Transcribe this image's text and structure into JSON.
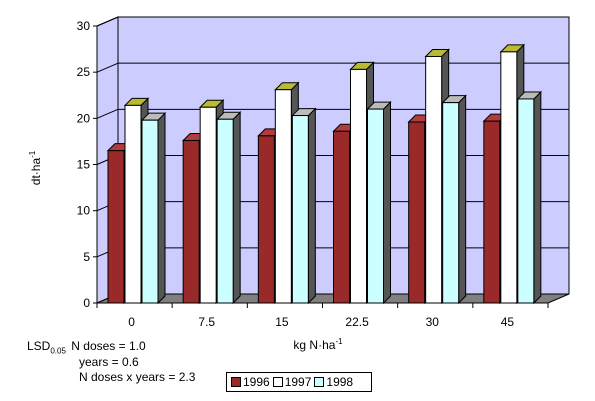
{
  "chart_data": {
    "type": "bar",
    "view": "3d-clustered-column",
    "categories": [
      "0",
      "7.5",
      "15",
      "22.5",
      "30",
      "45"
    ],
    "series": [
      {
        "name": "1996",
        "values": [
          16.5,
          17.6,
          18.1,
          18.6,
          19.6,
          19.7
        ],
        "color": "#9a2a2a"
      },
      {
        "name": "1997",
        "values": [
          21.4,
          21.2,
          23.1,
          25.3,
          26.7,
          27.2
        ],
        "color": "#ffffff"
      },
      {
        "name": "1998",
        "values": [
          19.8,
          19.9,
          20.3,
          21.0,
          21.7,
          22.1
        ],
        "color": "#ccffff"
      }
    ],
    "xlabel": "kg N·ha⁻¹",
    "xlabel_main": "kg N·ha",
    "xlabel_sup": "-1",
    "ylabel_main": "dt·ha",
    "ylabel_sup": "-1",
    "ylim": [
      0,
      30
    ],
    "yticks": [
      0,
      5,
      10,
      15,
      20,
      25,
      30
    ],
    "grid": true,
    "legend_position": "bottom",
    "colors": {
      "wall": "#ccccff",
      "floor": "#808080",
      "bar_side": "#555555",
      "bar_top_1996": "#b23c3c",
      "bar_top_1997": "#bbbb33",
      "bar_top_1998": "#bbbbbb"
    }
  },
  "lsd": {
    "label": "LSD",
    "subscript": "0.05",
    "lines": [
      "N doses = 1.0",
      "years = 0.6",
      "N doses x years = 2.3"
    ]
  }
}
